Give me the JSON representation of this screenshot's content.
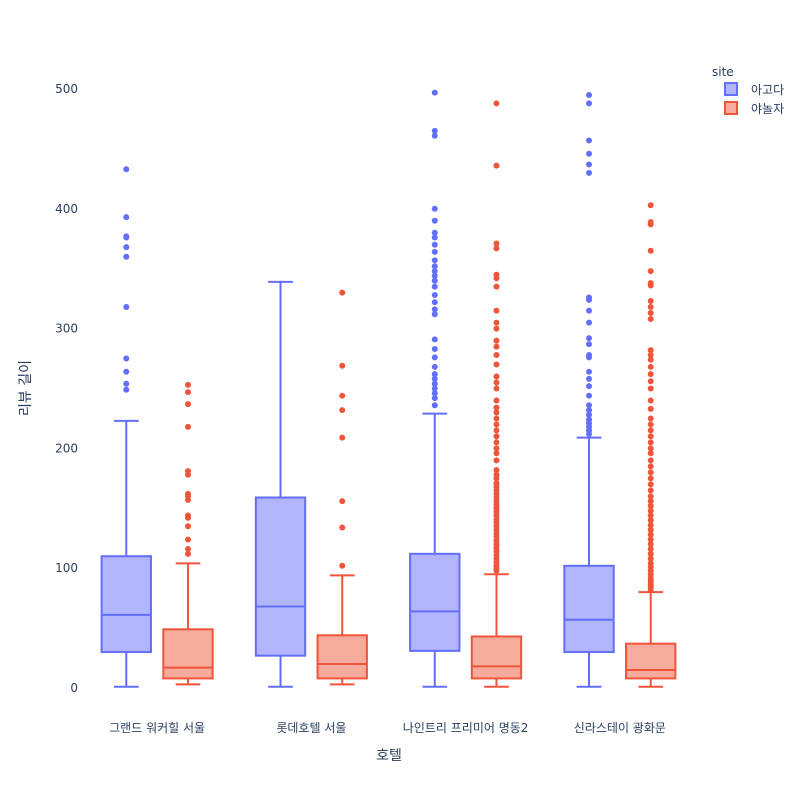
{
  "chart_data": {
    "type": "box",
    "title": "",
    "xlabel": "호텔",
    "ylabel": "리뷰 길이",
    "ylim": [
      -20,
      525
    ],
    "yticks": [
      0,
      100,
      200,
      300,
      400,
      500
    ],
    "categories": [
      "그랜드 워커힐 서울",
      "롯데호텔 서울",
      "나인트리 프리미어 명동2",
      "신라스테이 광화문"
    ],
    "legend": {
      "title": "site",
      "placement": "top-right"
    },
    "series": [
      {
        "name": "아고다",
        "color": "#636efa",
        "fill": "#b0b5fc",
        "boxes": [
          {
            "min": 1,
            "q1": 30,
            "median": 61,
            "q3": 110,
            "max": 223,
            "outliers": [
              249,
              254,
              264,
              275,
              318,
              360,
              368,
              376,
              377,
              393,
              433
            ]
          },
          {
            "min": 1,
            "q1": 27,
            "median": 68,
            "q3": 159,
            "max": 339,
            "outliers": []
          },
          {
            "min": 1,
            "q1": 31,
            "median": 64,
            "q3": 112,
            "max": 229,
            "outliers": [
              236,
              242,
              246,
              250,
              254,
              258,
              262,
              268,
              276,
              283,
              291,
              312,
              316,
              322,
              328,
              335,
              340,
              344,
              348,
              352,
              357,
              364,
              370,
              376,
              380,
              390,
              400,
              461,
              465,
              497
            ]
          },
          {
            "min": 1,
            "q1": 30,
            "median": 57,
            "q3": 102,
            "max": 209,
            "outliers": [
              212,
              215,
              218,
              221,
              224,
              228,
              232,
              236,
              244,
              252,
              258,
              264,
              276,
              278,
              287,
              292,
              305,
              315,
              324,
              326,
              430,
              437,
              446,
              457,
              488,
              495
            ]
          }
        ]
      },
      {
        "name": "야놀자",
        "color": "#ef553b",
        "fill": "#f7ab9d",
        "boxes": [
          {
            "min": 3,
            "q1": 8,
            "median": 17,
            "q3": 49,
            "max": 104,
            "outliers": [
              112,
              116,
              124,
              135,
              142,
              144,
              157,
              160,
              162,
              178,
              181,
              218,
              237,
              247,
              253
            ]
          },
          {
            "min": 3,
            "q1": 8,
            "median": 20,
            "q3": 44,
            "max": 94,
            "outliers": [
              102,
              134,
              156,
              209,
              232,
              244,
              269,
              330
            ]
          },
          {
            "min": 1,
            "q1": 8,
            "median": 18,
            "q3": 43,
            "max": 95,
            "outliers": [
              98,
              100,
              102,
              105,
              108,
              111,
              114,
              117,
              120,
              123,
              126,
              129,
              132,
              135,
              138,
              141,
              144,
              147,
              150,
              153,
              156,
              159,
              162,
              165,
              168,
              171,
              175,
              178,
              182,
              190,
              196,
              200,
              205,
              210,
              215,
              220,
              225,
              230,
              234,
              240,
              250,
              255,
              260,
              270,
              278,
              285,
              290,
              300,
              305,
              315,
              335,
              342,
              345,
              367,
              371,
              436,
              488
            ]
          },
          {
            "min": 1,
            "q1": 8,
            "median": 15,
            "q3": 37,
            "max": 80,
            "outliers": [
              82,
              84,
              86,
              88,
              90,
              92,
              95,
              98,
              101,
              104,
              108,
              112,
              116,
              120,
              124,
              128,
              132,
              136,
              140,
              144,
              148,
              152,
              156,
              160,
              165,
              170,
              175,
              180,
              185,
              190,
              196,
              200,
              205,
              210,
              215,
              220,
              225,
              233,
              240,
              250,
              256,
              262,
              268,
              274,
              278,
              282,
              308,
              313,
              318,
              323,
              336,
              338,
              348,
              365,
              387,
              389,
              403
            ]
          }
        ]
      }
    ]
  }
}
